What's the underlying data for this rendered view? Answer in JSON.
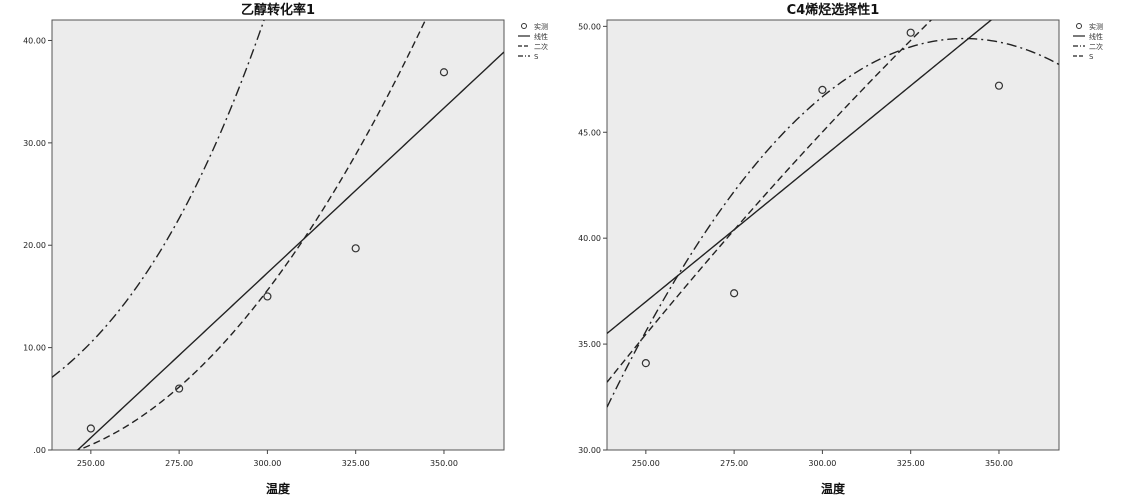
{
  "chart_data": [
    {
      "type": "scatter",
      "title": "乙醇转化率1",
      "xlabel": "温度",
      "ylabel": "",
      "xlim": [
        239,
        367
      ],
      "ylim": [
        0,
        42
      ],
      "x_ticks": [
        250,
        275,
        300,
        325,
        350
      ],
      "x_tick_labels": [
        "250.00",
        "275.00",
        "300.00",
        "325.00",
        "350.00"
      ],
      "y_ticks": [
        0,
        10,
        20,
        30,
        40
      ],
      "y_tick_labels": [
        ".00",
        "10.00",
        "20.00",
        "30.00",
        "40.00"
      ],
      "legend": [
        "实测",
        "线性",
        "二次",
        "S"
      ],
      "legend_position": "right",
      "observed": {
        "x": [
          250,
          275,
          300,
          325,
          350
        ],
        "y": [
          2.1,
          6.0,
          15.0,
          19.7,
          36.9
        ]
      },
      "series": [
        {
          "name": "线性",
          "style": "solid",
          "coef": [
            -79.3,
            0.322
          ],
          "form": "linear"
        },
        {
          "name": "二次",
          "style": "dashed",
          "coef": [
            153.0,
            -1.37,
            0.00304
          ],
          "form": "quadratic"
        },
        {
          "name": "S",
          "style": "dashdot",
          "coef": [
            10.81,
            -2115.0
          ],
          "form": "s"
        }
      ]
    },
    {
      "type": "scatter",
      "title": "C4烯烃选择性1",
      "xlabel": "温度",
      "ylabel": "",
      "xlim": [
        239,
        367
      ],
      "ylim": [
        30,
        50.3
      ],
      "x_ticks": [
        250,
        275,
        300,
        325,
        350
      ],
      "x_tick_labels": [
        "250.00",
        "275.00",
        "300.00",
        "325.00",
        "350.00"
      ],
      "y_ticks": [
        30,
        35,
        40,
        45,
        50
      ],
      "y_tick_labels": [
        "30.00",
        "35.00",
        "40.00",
        "45.00",
        "50.00"
      ],
      "legend": [
        "实测",
        "线性",
        "二次",
        "S"
      ],
      "legend_position": "right",
      "observed": {
        "x": [
          250,
          275,
          300,
          325,
          350
        ],
        "y": [
          34.1,
          37.4,
          47.0,
          49.7,
          47.2
        ]
      },
      "series": [
        {
          "name": "线性",
          "style": "solid",
          "coef": [
            3.0,
            0.136
          ],
          "form": "linear"
        },
        {
          "name": "二次",
          "style": "dashdot",
          "coef": [
            -147.3,
            1.1566,
            -0.0017
          ],
          "form": "quadratic"
        },
        {
          "name": "S",
          "style": "dashed",
          "coef": [
            4.9996,
            -357.8
          ],
          "form": "s"
        }
      ]
    }
  ]
}
